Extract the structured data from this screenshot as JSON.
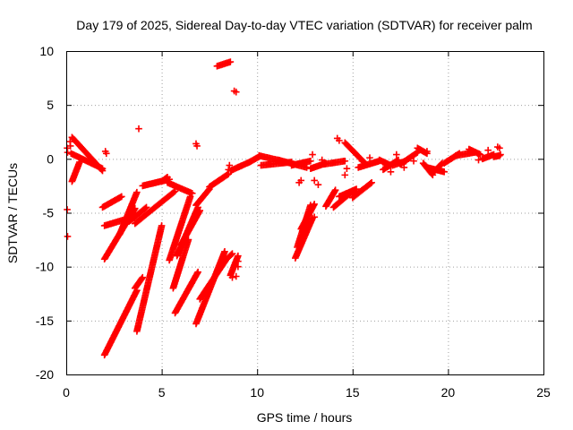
{
  "chart_data": {
    "type": "scatter",
    "title": "Day 179 of 2025, Sidereal Day-to-day VTEC variation (SDTVAR) for receiver palm",
    "xlabel": "GPS time / hours",
    "ylabel": "SDTVAR / TECUs",
    "xlim": [
      0,
      25
    ],
    "ylim": [
      -20,
      10
    ],
    "xticks": [
      0,
      5,
      10,
      15,
      20,
      25
    ],
    "yticks": [
      10,
      5,
      0,
      -5,
      -10,
      -15,
      -20
    ],
    "xtick_labels": [
      "0",
      "5",
      "10",
      "15",
      "20",
      "25"
    ],
    "ytick_labels": [
      "10",
      "5",
      "0",
      "-5",
      "-10",
      "-15",
      "-20"
    ],
    "grid": true,
    "marker": "+",
    "color": "#ff0000",
    "segments": [
      {
        "start": [
          0.3,
          2.0
        ],
        "end": [
          1.9,
          -1.1
        ]
      },
      {
        "start": [
          0.25,
          0.5
        ],
        "end": [
          1.9,
          -0.9
        ]
      },
      {
        "start": [
          0.3,
          -2.1
        ],
        "end": [
          0.7,
          -0.3
        ]
      },
      {
        "start": [
          1.9,
          -4.5
        ],
        "end": [
          2.9,
          -3.5
        ]
      },
      {
        "start": [
          2.0,
          -6.2
        ],
        "end": [
          3.5,
          -5.4
        ]
      },
      {
        "start": [
          2.0,
          -9.3
        ],
        "end": [
          3.6,
          -4.6
        ]
      },
      {
        "start": [
          2.0,
          -18.2
        ],
        "end": [
          3.7,
          -12.2
        ]
      },
      {
        "start": [
          2.8,
          -7.0
        ],
        "end": [
          3.7,
          -3.1
        ]
      },
      {
        "start": [
          3.3,
          -5.8
        ],
        "end": [
          4.2,
          -4.5
        ]
      },
      {
        "start": [
          3.6,
          -12.0
        ],
        "end": [
          4.0,
          -11.0
        ]
      },
      {
        "start": [
          3.7,
          -16.0
        ],
        "end": [
          5.0,
          -6.2
        ]
      },
      {
        "start": [
          3.6,
          -6.0
        ],
        "end": [
          5.7,
          -3.0
        ]
      },
      {
        "start": [
          4.0,
          -2.5
        ],
        "end": [
          5.4,
          -1.9
        ]
      },
      {
        "start": [
          5.0,
          -2.1
        ],
        "end": [
          5.3,
          -1.7
        ]
      },
      {
        "start": [
          5.3,
          -2.2
        ],
        "end": [
          6.6,
          -3.2
        ]
      },
      {
        "start": [
          5.4,
          -9.4
        ],
        "end": [
          6.5,
          -3.5
        ]
      },
      {
        "start": [
          5.6,
          -12.0
        ],
        "end": [
          6.4,
          -7.5
        ]
      },
      {
        "start": [
          5.7,
          -14.3
        ],
        "end": [
          6.9,
          -10.5
        ]
      },
      {
        "start": [
          5.8,
          -9.0
        ],
        "end": [
          6.9,
          -4.5
        ]
      },
      {
        "start": [
          6.0,
          -8.0
        ],
        "end": [
          7.0,
          -4.8
        ]
      },
      {
        "start": [
          6.8,
          -15.3
        ],
        "end": [
          8.3,
          -8.6
        ]
      },
      {
        "start": [
          6.8,
          -4.3
        ],
        "end": [
          7.5,
          -2.8
        ]
      },
      {
        "start": [
          7.0,
          -13.0
        ],
        "end": [
          8.4,
          -9.3
        ]
      },
      {
        "start": [
          7.5,
          -2.6
        ],
        "end": [
          8.5,
          -1.4
        ]
      },
      {
        "start": [
          8.4,
          -9.3
        ],
        "end": [
          8.7,
          -8.8
        ]
      },
      {
        "start": [
          8.6,
          -10.8
        ],
        "end": [
          9.0,
          -9.0
        ]
      },
      {
        "start": [
          8.6,
          -1.1
        ],
        "end": [
          9.6,
          -0.3
        ]
      },
      {
        "start": [
          7.9,
          8.6
        ],
        "end": [
          8.6,
          9.0
        ]
      },
      {
        "start": [
          9.6,
          -0.3
        ],
        "end": [
          10.1,
          0.2
        ]
      },
      {
        "start": [
          10.1,
          0.3
        ],
        "end": [
          11.3,
          -0.2
        ]
      },
      {
        "start": [
          10.2,
          -0.6
        ],
        "end": [
          11.8,
          -0.3
        ]
      },
      {
        "start": [
          11.1,
          -0.1
        ],
        "end": [
          12.6,
          -0.8
        ]
      },
      {
        "start": [
          11.8,
          -0.6
        ],
        "end": [
          12.8,
          -0.2
        ]
      },
      {
        "start": [
          12.0,
          -9.2
        ],
        "end": [
          12.9,
          -5.5
        ]
      },
      {
        "start": [
          12.1,
          -8.2
        ],
        "end": [
          12.8,
          -4.3
        ]
      },
      {
        "start": [
          12.3,
          -6.5
        ],
        "end": [
          13.0,
          -4.2
        ]
      },
      {
        "start": [
          12.8,
          -0.9
        ],
        "end": [
          13.6,
          -0.4
        ]
      },
      {
        "start": [
          13.5,
          -0.5
        ],
        "end": [
          14.6,
          -0.2
        ]
      },
      {
        "start": [
          13.6,
          -4.4
        ],
        "end": [
          14.1,
          -2.9
        ]
      },
      {
        "start": [
          14.0,
          -4.5
        ],
        "end": [
          15.0,
          -3.0
        ]
      },
      {
        "start": [
          14.3,
          -3.5
        ],
        "end": [
          15.2,
          -2.8
        ]
      },
      {
        "start": [
          15.0,
          -3.6
        ],
        "end": [
          16.0,
          -2.2
        ]
      },
      {
        "start": [
          14.6,
          1.5
        ],
        "end": [
          15.7,
          -0.5
        ]
      },
      {
        "start": [
          15.3,
          -0.8
        ],
        "end": [
          16.4,
          -0.2
        ]
      },
      {
        "start": [
          16.4,
          -0.1
        ],
        "end": [
          17.0,
          -0.6
        ]
      },
      {
        "start": [
          16.6,
          -1.0
        ],
        "end": [
          17.4,
          -0.1
        ]
      },
      {
        "start": [
          17.1,
          -0.6
        ],
        "end": [
          17.8,
          -0.2
        ]
      },
      {
        "start": [
          17.5,
          -0.5
        ],
        "end": [
          18.4,
          0.6
        ]
      },
      {
        "start": [
          18.4,
          1.0
        ],
        "end": [
          18.9,
          0.5
        ]
      },
      {
        "start": [
          18.7,
          -0.4
        ],
        "end": [
          19.2,
          -1.5
        ]
      },
      {
        "start": [
          18.9,
          -0.8
        ],
        "end": [
          19.8,
          -1.2
        ]
      },
      {
        "start": [
          19.2,
          -1.3
        ],
        "end": [
          19.7,
          -0.4
        ]
      },
      {
        "start": [
          19.8,
          -0.4
        ],
        "end": [
          20.6,
          0.5
        ]
      },
      {
        "start": [
          20.4,
          0.3
        ],
        "end": [
          21.4,
          0.6
        ]
      },
      {
        "start": [
          21.1,
          0.9
        ],
        "end": [
          21.7,
          0.4
        ]
      },
      {
        "start": [
          21.8,
          0.0
        ],
        "end": [
          22.4,
          0.4
        ]
      },
      {
        "start": [
          22.4,
          0.2
        ],
        "end": [
          22.7,
          0.3
        ]
      }
    ],
    "points": [
      [
        0.05,
        1.0
      ],
      [
        0.07,
        0.6
      ],
      [
        0.05,
        -4.7
      ],
      [
        0.07,
        -7.2
      ],
      [
        0.2,
        1.6
      ],
      [
        0.22,
        1.2
      ],
      [
        2.05,
        0.7
      ],
      [
        2.1,
        0.5
      ],
      [
        3.8,
        2.8
      ],
      [
        6.8,
        1.4
      ],
      [
        6.85,
        1.2
      ],
      [
        8.5,
        -1.0
      ],
      [
        8.55,
        -0.6
      ],
      [
        8.8,
        6.3
      ],
      [
        8.9,
        6.2
      ],
      [
        9.0,
        -10.0
      ],
      [
        9.0,
        -9.5
      ],
      [
        8.7,
        -11.0
      ],
      [
        8.9,
        -10.9
      ],
      [
        12.2,
        -2.2
      ],
      [
        12.3,
        -2.0
      ],
      [
        12.9,
        0.4
      ],
      [
        13.0,
        -5.4
      ],
      [
        13.0,
        -2.0
      ],
      [
        13.2,
        -2.4
      ],
      [
        13.4,
        -0.1
      ],
      [
        14.2,
        1.9
      ],
      [
        14.3,
        1.7
      ],
      [
        14.6,
        -1.5
      ],
      [
        14.7,
        -0.9
      ],
      [
        15.5,
        -0.2
      ],
      [
        15.9,
        0.1
      ],
      [
        16.6,
        -0.3
      ],
      [
        17.0,
        -1.2
      ],
      [
        17.3,
        0.4
      ],
      [
        17.7,
        -0.8
      ],
      [
        18.2,
        -0.2
      ],
      [
        18.9,
        0.7
      ],
      [
        21.6,
        -0.1
      ],
      [
        22.1,
        0.8
      ],
      [
        22.6,
        1.1
      ],
      [
        22.7,
        1.0
      ],
      [
        22.75,
        0.4
      ]
    ]
  }
}
